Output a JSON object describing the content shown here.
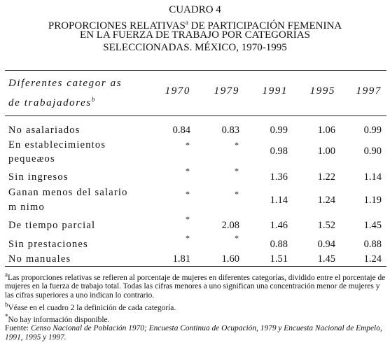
{
  "header": {
    "title_lines": [
      {
        "text": "CUADRO 4"
      },
      {
        "text": "PROPORCIONES RELATIVAS",
        "sup": "a",
        "rest": " DE PARTICIPACIÓN FEMENINA"
      },
      {
        "text": "EN LA FUERZA DE TRABAJO POR CATEGORÍAS"
      },
      {
        "text": "SELECCIONADAS. MÉXICO, 1970-1995"
      }
    ]
  },
  "table": {
    "stub_header": [
      "Diferentes categor as",
      "de trabajadores"
    ],
    "stub_header_sup": "b",
    "columns": [
      "1970",
      "1979",
      "1991",
      "1995",
      "1997"
    ],
    "rows": [
      {
        "label": [
          "No asalariados"
        ],
        "cells": [
          "0.84",
          "0.83",
          "0.99",
          "1.06",
          "0.99"
        ]
      },
      {
        "label": [
          "En establecimientos",
          "pequeæos"
        ],
        "cells": [
          "*",
          "*",
          "0.98",
          "1.00",
          "0.90"
        ]
      },
      {
        "label": [
          "Sin ingresos"
        ],
        "cells": [
          "*",
          "*",
          "1.36",
          "1.22",
          "1.14"
        ]
      },
      {
        "label": [
          "Ganan menos del salario",
          "m nimo"
        ],
        "cells": [
          "*",
          "*",
          "1.14",
          "1.24",
          "1.19"
        ]
      },
      {
        "label": [
          "De tiempo parcial"
        ],
        "cells": [
          "*",
          "2.08",
          "1.46",
          "1.52",
          "1.45"
        ]
      },
      {
        "label": [
          "Sin prestaciones"
        ],
        "cells": [
          "*",
          "*",
          "0.88",
          "0.94",
          "0.88"
        ]
      },
      {
        "label": [
          "No manuales"
        ],
        "cells": [
          "1.81",
          "1.60",
          "1.51",
          "1.45",
          "1.24"
        ]
      }
    ]
  },
  "notes": [
    {
      "mark": "a",
      "text": "Las proporciones relativas se refieren al porcentaje de mujeres en diferentes categorías, dividido entre el porcentaje de mujeres en la fuerza de trabajo total. Todas las cifras menores a uno significan una concentración menor de mujeres y las cifras superiores a uno indican lo contrario."
    },
    {
      "mark": "b",
      "text": "Véase en el cuadro 2 la definición de cada categoría."
    },
    {
      "mark": "*",
      "text": "No hay información disponible."
    }
  ],
  "source": {
    "label": "Fuente: ",
    "text": "Censo Nacional de Población 1970; Encuesta Continua de Ocupación, 1979 y Encuesta Nacional de Empelo, 1991, 1995 y 1997."
  }
}
